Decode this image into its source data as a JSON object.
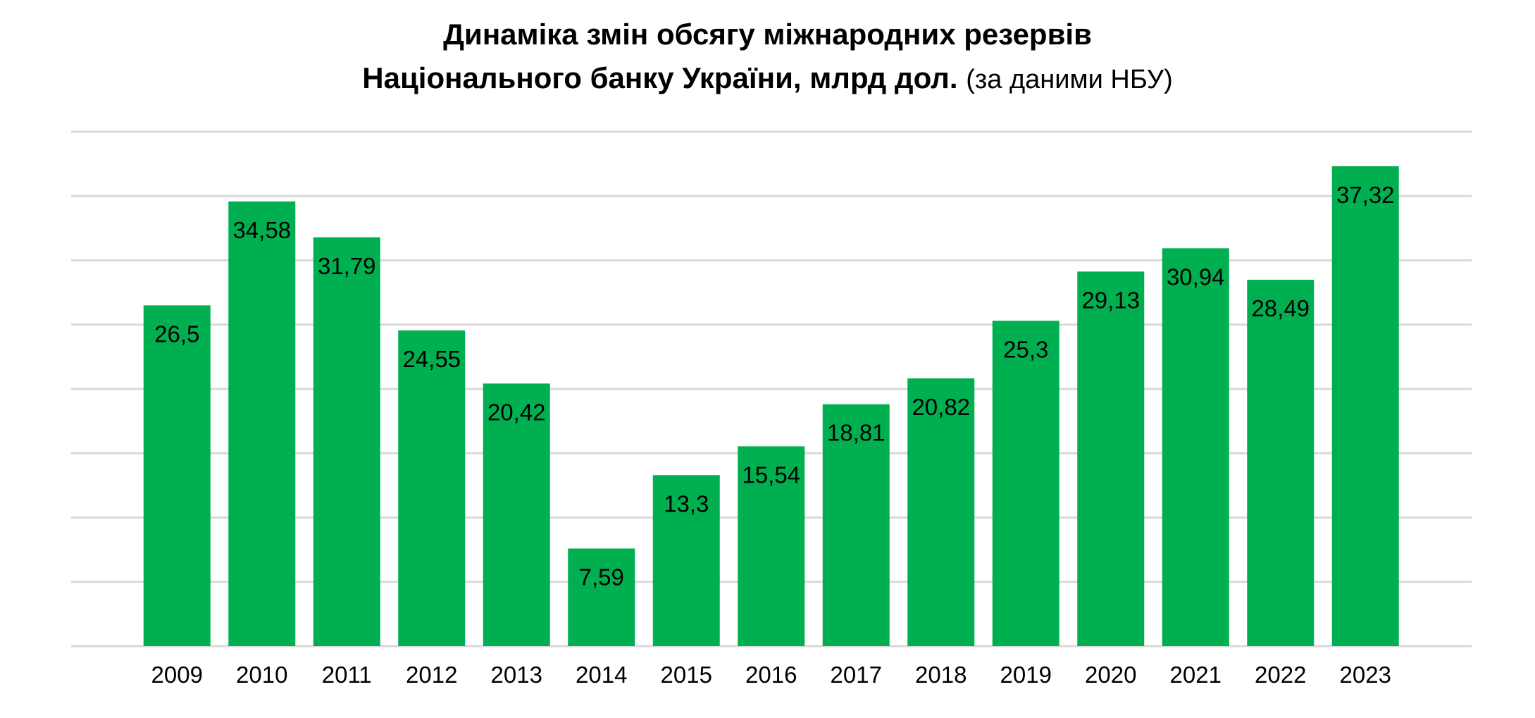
{
  "chart_data": {
    "type": "bar",
    "title_line1": "Динаміка змін обсягу міжнародних резервів",
    "title_line2": "Національного банку України, млрд дол.",
    "title_note": "(за даними НБУ)",
    "categories": [
      "2009",
      "2010",
      "2011",
      "2012",
      "2013",
      "2014",
      "2015",
      "2016",
      "2017",
      "2018",
      "2019",
      "2020",
      "2021",
      "2022",
      "2023"
    ],
    "values": [
      26.5,
      34.58,
      31.79,
      24.55,
      20.42,
      7.59,
      13.3,
      15.54,
      18.81,
      20.82,
      25.3,
      29.13,
      30.94,
      28.49,
      37.32
    ],
    "value_labels": [
      "26,5",
      "34,58",
      "31,79",
      "24,55",
      "20,42",
      "7,59",
      "13,3",
      "15,54",
      "18,81",
      "20,82",
      "25,3",
      "29,13",
      "30,94",
      "28,49",
      "37,32"
    ],
    "xlabel": "",
    "ylabel": "",
    "ylim": [
      0,
      40
    ],
    "y_grid_step": 5,
    "grid": true,
    "y_tick_labels_shown": false,
    "legend": "none",
    "colors": {
      "bar": "#00b050",
      "grid": "#d9d9d9",
      "axis": "#d9d9d9",
      "text": "#000000"
    }
  }
}
